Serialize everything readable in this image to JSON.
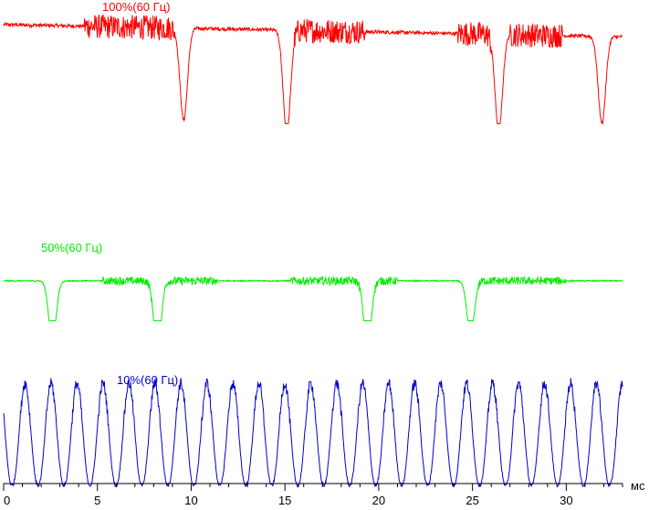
{
  "chart_data": {
    "type": "line",
    "xlabel": "мс",
    "xlim": [
      0,
      33
    ],
    "x_ticks": [
      0,
      5,
      10,
      15,
      20,
      25,
      30
    ],
    "x_tick_labels": [
      "0",
      "5",
      "10",
      "15",
      "20",
      "25",
      "30"
    ],
    "grid": false,
    "series": [
      {
        "name": "100%(60 Гц)",
        "color": "#ff0000",
        "base": 0.92,
        "slope": -0.12,
        "noise": 0.06,
        "dips": [
          [
            9.6,
            0.9
          ],
          [
            15.1,
            1.0
          ],
          [
            26.4,
            0.95
          ],
          [
            31.9,
            0.85
          ]
        ],
        "bursts": [
          [
            4.3,
            9.1
          ],
          [
            15.5,
            19.3
          ],
          [
            24.2,
            26.0
          ],
          [
            27.0,
            29.8
          ]
        ]
      },
      {
        "name": "50%(60 Гц)",
        "color": "#00ee00",
        "base": 0.55,
        "slope": 0.0,
        "noise": 0.03,
        "dips": [
          [
            2.6,
            0.9
          ],
          [
            8.2,
            1.0
          ],
          [
            19.4,
            1.0
          ],
          [
            24.9,
            0.8
          ]
        ],
        "bursts": [
          [
            5.3,
            7.9
          ],
          [
            8.6,
            11.4
          ],
          [
            15.3,
            19.1
          ],
          [
            19.8,
            21.0
          ],
          [
            25.3,
            30.0
          ]
        ]
      },
      {
        "name": "10%(60 Гц)",
        "color": "#0000cc",
        "periodic": true,
        "period": 1.385,
        "phase": 0.45,
        "min": 0,
        "max": 1,
        "noise": 0.05
      }
    ]
  }
}
